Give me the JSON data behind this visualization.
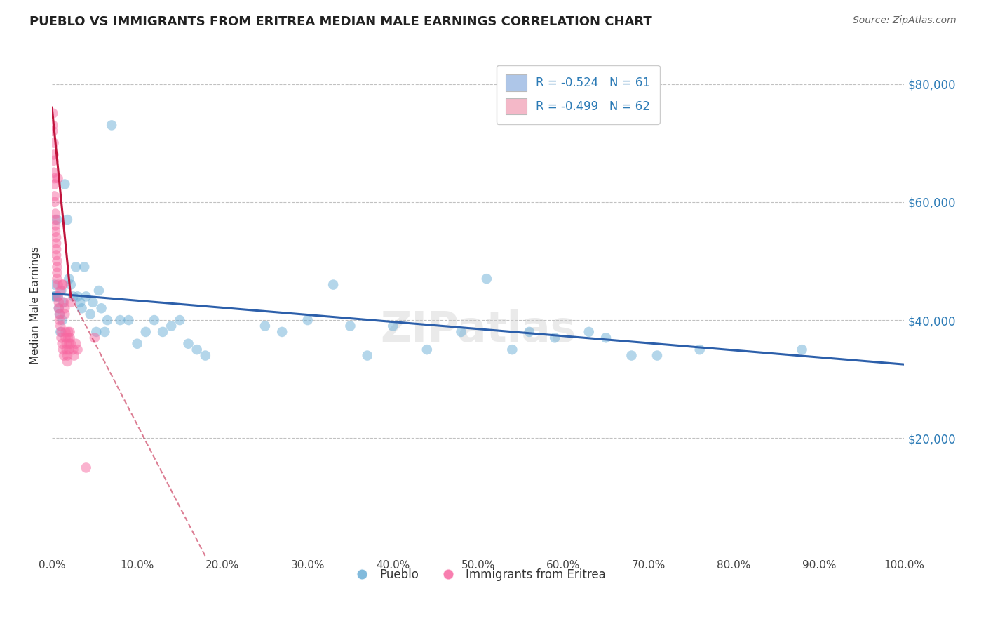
{
  "title": "PUEBLO VS IMMIGRANTS FROM ERITREA MEDIAN MALE EARNINGS CORRELATION CHART",
  "source": "Source: ZipAtlas.com",
  "ylabel": "Median Male Earnings",
  "xlim": [
    0.0,
    1.0
  ],
  "ylim": [
    0,
    85000
  ],
  "xticks": [
    0.0,
    0.1,
    0.2,
    0.3,
    0.4,
    0.5,
    0.6,
    0.7,
    0.8,
    0.9,
    1.0
  ],
  "xticklabels": [
    "0.0%",
    "10.0%",
    "20.0%",
    "30.0%",
    "40.0%",
    "50.0%",
    "60.0%",
    "70.0%",
    "80.0%",
    "90.0%",
    "100.0%"
  ],
  "yticks": [
    20000,
    40000,
    60000,
    80000
  ],
  "yticklabels": [
    "$20,000",
    "$40,000",
    "$60,000",
    "$80,000"
  ],
  "legend_box_entries": [
    {
      "color": "#aec6e8",
      "label": "R = -0.524   N = 61"
    },
    {
      "color": "#f4b8c8",
      "label": "R = -0.499   N = 62"
    }
  ],
  "pueblo_color": "#6baed6",
  "eritrea_color": "#f768a1",
  "pueblo_line_color": "#2c5faa",
  "eritrea_line_color": "#c0143c",
  "watermark": "ZIPatlas",
  "pueblo_line": {
    "x0": 0.0,
    "y0": 44500,
    "x1": 1.0,
    "y1": 32500
  },
  "eritrea_line_solid": {
    "x0": 0.0,
    "y0": 76000,
    "x1": 0.022,
    "y1": 44000
  },
  "eritrea_line_dashed": {
    "x0": 0.022,
    "y0": 44000,
    "x1": 0.18,
    "y1": 0
  },
  "pueblo_scatter": [
    [
      0.002,
      44000
    ],
    [
      0.003,
      46000
    ],
    [
      0.004,
      44000
    ],
    [
      0.005,
      44000
    ],
    [
      0.006,
      57000
    ],
    [
      0.007,
      44000
    ],
    [
      0.008,
      42000
    ],
    [
      0.009,
      41000
    ],
    [
      0.01,
      38000
    ],
    [
      0.011,
      45000
    ],
    [
      0.012,
      40000
    ],
    [
      0.013,
      43000
    ],
    [
      0.015,
      63000
    ],
    [
      0.018,
      57000
    ],
    [
      0.02,
      47000
    ],
    [
      0.022,
      46000
    ],
    [
      0.025,
      44000
    ],
    [
      0.028,
      49000
    ],
    [
      0.03,
      44000
    ],
    [
      0.033,
      43000
    ],
    [
      0.035,
      42000
    ],
    [
      0.038,
      49000
    ],
    [
      0.04,
      44000
    ],
    [
      0.045,
      41000
    ],
    [
      0.048,
      43000
    ],
    [
      0.052,
      38000
    ],
    [
      0.055,
      45000
    ],
    [
      0.058,
      42000
    ],
    [
      0.062,
      38000
    ],
    [
      0.065,
      40000
    ],
    [
      0.07,
      73000
    ],
    [
      0.08,
      40000
    ],
    [
      0.09,
      40000
    ],
    [
      0.1,
      36000
    ],
    [
      0.11,
      38000
    ],
    [
      0.12,
      40000
    ],
    [
      0.13,
      38000
    ],
    [
      0.14,
      39000
    ],
    [
      0.15,
      40000
    ],
    [
      0.16,
      36000
    ],
    [
      0.17,
      35000
    ],
    [
      0.18,
      34000
    ],
    [
      0.25,
      39000
    ],
    [
      0.27,
      38000
    ],
    [
      0.3,
      40000
    ],
    [
      0.33,
      46000
    ],
    [
      0.35,
      39000
    ],
    [
      0.37,
      34000
    ],
    [
      0.4,
      39000
    ],
    [
      0.44,
      35000
    ],
    [
      0.48,
      38000
    ],
    [
      0.51,
      47000
    ],
    [
      0.54,
      35000
    ],
    [
      0.56,
      38000
    ],
    [
      0.59,
      37000
    ],
    [
      0.63,
      38000
    ],
    [
      0.65,
      37000
    ],
    [
      0.68,
      34000
    ],
    [
      0.71,
      34000
    ],
    [
      0.76,
      35000
    ],
    [
      0.88,
      35000
    ]
  ],
  "eritrea_scatter": [
    [
      0.001,
      75000
    ],
    [
      0.001,
      73000
    ],
    [
      0.001,
      72000
    ],
    [
      0.002,
      70000
    ],
    [
      0.002,
      68000
    ],
    [
      0.002,
      67000
    ],
    [
      0.002,
      65000
    ],
    [
      0.003,
      64000
    ],
    [
      0.003,
      63000
    ],
    [
      0.003,
      61000
    ],
    [
      0.003,
      60000
    ],
    [
      0.004,
      58000
    ],
    [
      0.004,
      57000
    ],
    [
      0.004,
      56000
    ],
    [
      0.004,
      55000
    ],
    [
      0.005,
      54000
    ],
    [
      0.005,
      53000
    ],
    [
      0.005,
      52000
    ],
    [
      0.005,
      51000
    ],
    [
      0.006,
      50000
    ],
    [
      0.006,
      49000
    ],
    [
      0.006,
      48000
    ],
    [
      0.006,
      47000
    ],
    [
      0.007,
      64000
    ],
    [
      0.007,
      46000
    ],
    [
      0.007,
      44000
    ],
    [
      0.008,
      43000
    ],
    [
      0.008,
      42000
    ],
    [
      0.009,
      41000
    ],
    [
      0.009,
      40000
    ],
    [
      0.01,
      45000
    ],
    [
      0.01,
      39000
    ],
    [
      0.011,
      38000
    ],
    [
      0.011,
      37000
    ],
    [
      0.012,
      46000
    ],
    [
      0.012,
      36000
    ],
    [
      0.013,
      35000
    ],
    [
      0.013,
      46000
    ],
    [
      0.014,
      34000
    ],
    [
      0.014,
      43000
    ],
    [
      0.015,
      42000
    ],
    [
      0.015,
      41000
    ],
    [
      0.016,
      38000
    ],
    [
      0.016,
      37000
    ],
    [
      0.017,
      36000
    ],
    [
      0.017,
      35000
    ],
    [
      0.018,
      34000
    ],
    [
      0.018,
      33000
    ],
    [
      0.019,
      38000
    ],
    [
      0.019,
      37000
    ],
    [
      0.02,
      36000
    ],
    [
      0.02,
      35000
    ],
    [
      0.021,
      38000
    ],
    [
      0.021,
      37000
    ],
    [
      0.022,
      43000
    ],
    [
      0.022,
      36000
    ],
    [
      0.025,
      35000
    ],
    [
      0.026,
      34000
    ],
    [
      0.028,
      36000
    ],
    [
      0.03,
      35000
    ],
    [
      0.04,
      15000
    ],
    [
      0.05,
      37000
    ]
  ]
}
